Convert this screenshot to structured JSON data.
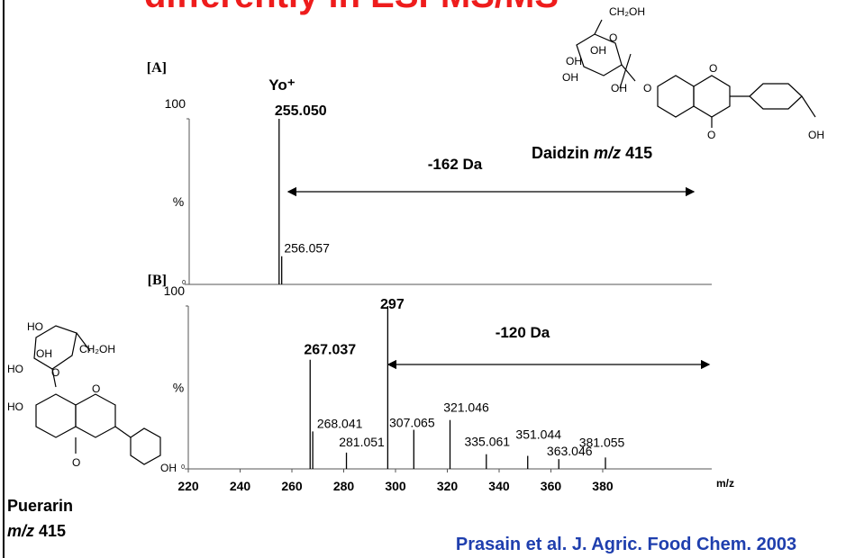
{
  "title": "differently in ESI-MS/MS",
  "citation": "Prasain et al. J. Agric. Food Chem. 2003",
  "daidzin": {
    "name": "Daidzin",
    "mz_label": "m/z",
    "mz": 415,
    "atoms": [
      "CH₂OH",
      "O",
      "OH",
      "OH",
      "OH",
      "OH",
      "O",
      "O",
      "O",
      "OH"
    ]
  },
  "puerarin": {
    "name": "Puerarin",
    "mz_label": "m/z",
    "mz": 415,
    "atoms": [
      "HO",
      "CH₂OH",
      "OH",
      "HO",
      "O",
      "HO",
      "O",
      "O",
      "OH"
    ]
  },
  "chart_data": [
    {
      "type": "bar",
      "panel_label": "[A]",
      "ion_label": "Yo⁺",
      "y_label": "%",
      "xlim": [
        218.6,
        422.1
      ],
      "xticks": [],
      "ylim": [
        0,
        100
      ],
      "yticks": [
        0,
        100
      ],
      "annotation": "-162 Da",
      "series": [
        {
          "name": null,
          "color": "#000000",
          "x": [
            255.05,
            256.057
          ],
          "values": [
            100,
            17
          ],
          "peak_labels": [
            "255.050",
            "256.057"
          ]
        }
      ]
    },
    {
      "type": "bar",
      "panel_label": "[B]",
      "y_label": "%",
      "x_label": "m/z",
      "xlim": [
        218.6,
        422.1
      ],
      "xticks": [
        220,
        240,
        260,
        280,
        300,
        320,
        340,
        360,
        380
      ],
      "ylim": [
        0,
        100
      ],
      "yticks": [
        0,
        100
      ],
      "annotation": "-120 Da",
      "series": [
        {
          "name": null,
          "color": "#000000",
          "x": [
            267.037,
            297,
            268.041,
            281.051,
            307.065,
            321.046,
            335.061,
            351.044,
            363.046,
            381.055
          ],
          "values": [
            67,
            100,
            23,
            10,
            24,
            30,
            9,
            8,
            6,
            7
          ],
          "peak_labels": [
            "267.037",
            "297",
            "268.041",
            "281.051",
            "307.065",
            "321.046",
            "335.061",
            "351.044",
            "363.046",
            "381.055"
          ]
        }
      ]
    }
  ]
}
